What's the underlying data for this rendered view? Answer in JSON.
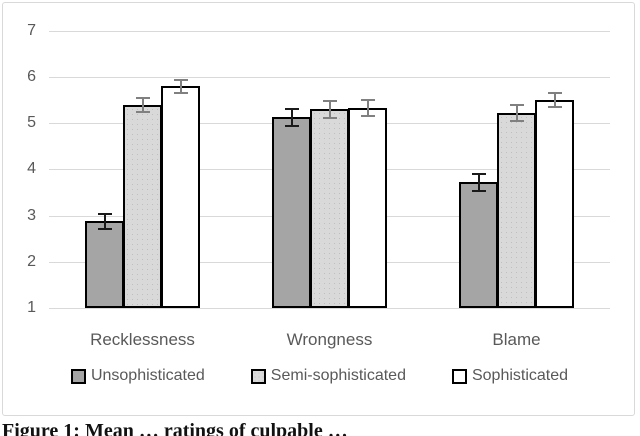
{
  "figure": {
    "caption": "Figure 1: Mean … ratings of culpable …"
  },
  "colors": {
    "grid": "#d9d9d9",
    "frame_border": "#d9d9d9",
    "axis_text": "#595959",
    "bar_border": "#000000",
    "error_dark": "#1a1a1a",
    "error_gray": "#808080"
  },
  "chart_data": {
    "type": "bar",
    "title": "",
    "xlabel": "",
    "ylabel": "",
    "categories": [
      "Recklessness",
      "Wrongness",
      "Blame"
    ],
    "series": [
      {
        "name": "Unsophisticated",
        "fill": "#a5a5a5",
        "pattern": "solid",
        "error_color": "#1a1a1a",
        "values": [
          2.88,
          5.13,
          3.72
        ],
        "errors": [
          0.18,
          0.2,
          0.2
        ]
      },
      {
        "name": "Semi-sophisticated",
        "fill": "#d9d9d9",
        "pattern": "dots",
        "error_color": "#808080",
        "values": [
          5.4,
          5.3,
          5.22
        ],
        "errors": [
          0.17,
          0.2,
          0.2
        ]
      },
      {
        "name": "Sophisticated",
        "fill": "#ffffff",
        "pattern": "solid",
        "error_color": "#808080",
        "values": [
          5.8,
          5.33,
          5.5
        ],
        "errors": [
          0.17,
          0.2,
          0.17
        ]
      }
    ],
    "y_axis": {
      "min": 1,
      "max": 7,
      "tick_step": 1,
      "ticks": [
        1,
        2,
        3,
        4,
        5,
        6,
        7
      ]
    },
    "grid": true,
    "error_bars": true,
    "legend_position": "bottom"
  }
}
